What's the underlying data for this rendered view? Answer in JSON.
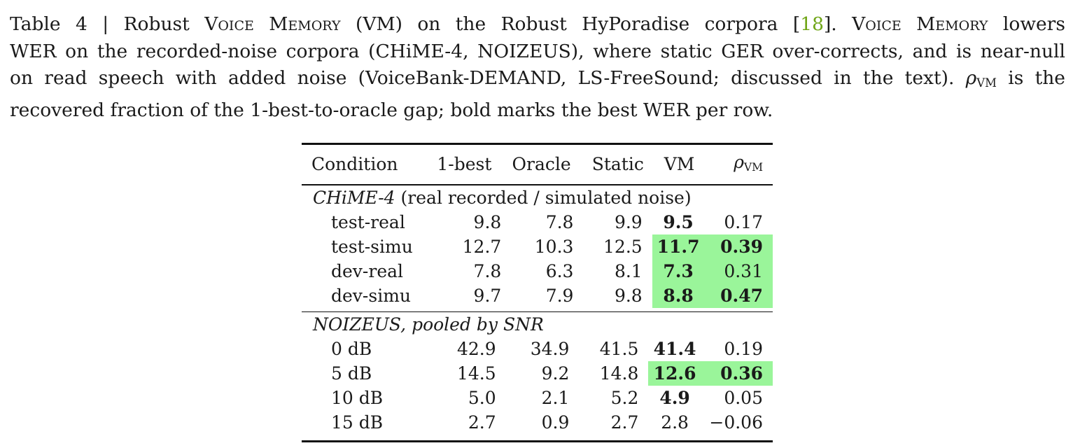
{
  "caption": {
    "label": "Table 4",
    "sep": "|",
    "l1_a": "Robust",
    "l1_sc1": "Voice Memory",
    "l1_b": "(VM) on the Robust HyPoradise corpora [",
    "cite": "18",
    "l1_c": "].",
    "l1_sc2": "Voice Memory",
    "l1_d": "lowers",
    "l2": "WER on the recorded-noise corpora (CHiME-4, NOIZEUS), where static GER over-corrects, and is near-null",
    "l3_a": "on read speech with added noise (VoiceBank-DEMAND, LS-FreeSound; discussed in the text).",
    "rho": "ρ",
    "rho_sub": "VM",
    "l3_b": "is the",
    "l4": "recovered fraction of the 1-best-to-oracle gap; bold marks the best WER per row."
  },
  "table": {
    "headers": {
      "condition": "Condition",
      "onebest": "1-best",
      "oracle": "Oracle",
      "static": "Static",
      "vm": "VM",
      "rho": "ρ",
      "rho_sub": "VM"
    },
    "group1": {
      "name": "CHiME-4",
      "desc": "(real recorded / simulated noise)",
      "rows": [
        {
          "cond": "test-real",
          "onebest": "9.8",
          "oracle": "7.8",
          "static": "9.9",
          "vm": "9.5",
          "rho": "0.17"
        },
        {
          "cond": "test-simu",
          "onebest": "12.7",
          "oracle": "10.3",
          "static": "12.5",
          "vm": "11.7",
          "rho": "0.39"
        },
        {
          "cond": "dev-real",
          "onebest": "7.8",
          "oracle": "6.3",
          "static": "8.1",
          "vm": "7.3",
          "rho": "0.31"
        },
        {
          "cond": "dev-simu",
          "onebest": "9.7",
          "oracle": "7.9",
          "static": "9.8",
          "vm": "8.8",
          "rho": "0.47"
        }
      ]
    },
    "group2": {
      "name": "NOIZEUS, pooled by SNR",
      "rows": [
        {
          "cond": "0 dB",
          "onebest": "42.9",
          "oracle": "34.9",
          "static": "41.5",
          "vm": "41.4",
          "rho": "0.19"
        },
        {
          "cond": "5 dB",
          "onebest": "14.5",
          "oracle": "9.2",
          "static": "14.8",
          "vm": "12.6",
          "rho": "0.36"
        },
        {
          "cond": "10 dB",
          "onebest": "5.0",
          "oracle": "2.1",
          "static": "5.2",
          "vm": "4.9",
          "rho": "0.05"
        },
        {
          "cond": "15 dB",
          "onebest": "2.7",
          "oracle": "0.9",
          "static": "2.7",
          "vm": "2.8",
          "rho": "−0.06"
        }
      ]
    },
    "highlight_color": "#9af59a"
  }
}
